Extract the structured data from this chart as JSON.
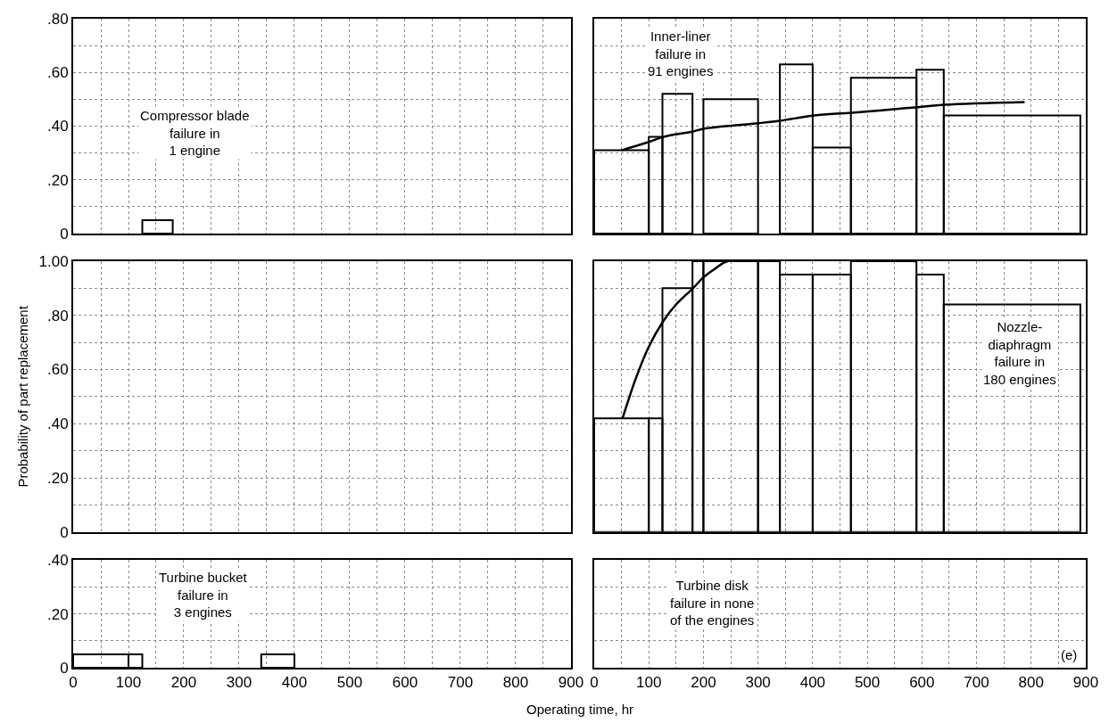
{
  "chart_data": [
    {
      "type": "histogram",
      "color": "#000000",
      "bins": [
        125,
        180
      ],
      "values": [
        0.05
      ],
      "annotations": [
        "Compressor blade\nfailure in\n1 engine"
      ],
      "xlim": [
        0,
        900
      ],
      "xticks": [
        0,
        50,
        100,
        150,
        200,
        250,
        300,
        350,
        400,
        450,
        500,
        550,
        600,
        650,
        700,
        750,
        800,
        850,
        900
      ],
      "ylim": [
        0,
        0.8
      ],
      "yticks": [
        0,
        {
          "value": 0.1,
          "label": null
        },
        {
          "value": 0.2,
          "label": ".20"
        },
        {
          "value": 0.3,
          "label": null
        },
        {
          "value": 0.4,
          "label": ".40"
        },
        {
          "value": 0.5,
          "label": null
        },
        {
          "value": 0.6,
          "label": ".60"
        },
        {
          "value": 0.7,
          "label": null
        },
        {
          "value": 0.8,
          "label": ".80"
        }
      ],
      "grid": true,
      "tick_labels": "y"
    },
    {
      "type": "histogram",
      "color": "#000000",
      "bins": [
        0,
        100,
        125,
        180,
        200,
        300,
        340,
        400,
        470,
        590,
        640,
        890
      ],
      "values": [
        0.31,
        0.36,
        0.52,
        null,
        0.5,
        null,
        0.63,
        0.32,
        0.58,
        0.61,
        0.44
      ],
      "series": [
        {
          "type": "line",
          "color": "#000000",
          "x": [
            50,
            99,
            127,
            181,
            200,
            296,
            340,
            403,
            472,
            587,
            641,
            788
          ],
          "values": [
            0.31,
            0.34,
            0.36,
            0.38,
            0.39,
            0.41,
            0.42,
            0.44,
            0.45,
            0.47,
            0.48,
            0.49
          ]
        }
      ],
      "annotations": [
        "Inner-liner\nfailure in\n91 engines"
      ],
      "xlim": [
        0,
        900
      ],
      "xticks": [
        0,
        50,
        100,
        150,
        200,
        250,
        300,
        350,
        400,
        450,
        500,
        550,
        600,
        650,
        700,
        750,
        800,
        850,
        900
      ],
      "ylim": [
        0,
        0.8
      ],
      "yticks": [
        0,
        0.1,
        0.2,
        0.3,
        0.4,
        0.5,
        0.6,
        0.7,
        0.8
      ],
      "grid": true,
      "tick_labels": false
    },
    {
      "type": "histogram",
      "color": "#000000",
      "ylabel": "Probability of part replacement",
      "xlim": [
        0,
        900
      ],
      "xticks": [
        0,
        50,
        100,
        150,
        200,
        250,
        300,
        350,
        400,
        450,
        500,
        550,
        600,
        650,
        700,
        750,
        800,
        850,
        900
      ],
      "ylim": [
        0,
        1.0
      ],
      "yticks": [
        0,
        {
          "value": 0.1,
          "label": null
        },
        {
          "value": 0.2,
          "label": ".20"
        },
        {
          "value": 0.3,
          "label": null
        },
        {
          "value": 0.4,
          "label": ".40"
        },
        {
          "value": 0.5,
          "label": null
        },
        {
          "value": 0.6,
          "label": ".60"
        },
        {
          "value": 0.7,
          "label": null
        },
        {
          "value": 0.8,
          "label": ".80"
        },
        {
          "value": 0.9,
          "label": null
        },
        {
          "value": 1.0,
          "label": "1.00"
        }
      ],
      "grid": true,
      "tick_labels": "y"
    },
    {
      "type": "histogram",
      "color": "#000000",
      "bins": [
        0,
        100,
        125,
        180,
        200,
        300,
        340,
        400,
        470,
        590,
        640,
        890
      ],
      "values": [
        0.42,
        0.42,
        0.9,
        1.0,
        1.0,
        1.0,
        0.95,
        0.95,
        1.0,
        0.95,
        0.84
      ],
      "series": [
        {
          "type": "line",
          "color": "#000000",
          "x": [
            52,
            75,
            99,
            127,
            150,
            181,
            200,
            220,
            245,
            590
          ],
          "values": [
            0.42,
            0.56,
            0.68,
            0.78,
            0.84,
            0.9,
            0.94,
            0.97,
            1.0,
            1.0
          ]
        }
      ],
      "annotations": [
        "Nozzle-\ndiaphragm\nfailure in\n180 engines"
      ],
      "xlim": [
        0,
        900
      ],
      "xticks": [
        0,
        50,
        100,
        150,
        200,
        250,
        300,
        350,
        400,
        450,
        500,
        550,
        600,
        650,
        700,
        750,
        800,
        850,
        900
      ],
      "ylim": [
        0,
        1.0
      ],
      "yticks": [
        0,
        0.1,
        0.2,
        0.3,
        0.4,
        0.5,
        0.6,
        0.7,
        0.8,
        0.9,
        1.0
      ],
      "grid": true,
      "tick_labels": false
    },
    {
      "type": "histogram",
      "color": "#000000",
      "bins": [
        0,
        100,
        125,
        340,
        400
      ],
      "values": [
        0.05,
        0.05,
        null,
        0.05
      ],
      "annotations": [
        "Turbine bucket\nfailure in\n3 engines"
      ],
      "xlabel": "Operating time, hr",
      "xlim": [
        0,
        900
      ],
      "xticks": [
        0,
        {
          "value": 50,
          "label": null
        },
        100,
        {
          "value": 150,
          "label": null
        },
        200,
        {
          "value": 250,
          "label": null
        },
        300,
        {
          "value": 350,
          "label": null
        },
        400,
        {
          "value": 450,
          "label": null
        },
        500,
        {
          "value": 550,
          "label": null
        },
        600,
        {
          "value": 650,
          "label": null
        },
        700,
        {
          "value": 750,
          "label": null
        },
        800,
        {
          "value": 850,
          "label": null
        },
        900
      ],
      "ylim": [
        0,
        0.4
      ],
      "yticks": [
        0,
        {
          "value": 0.1,
          "label": null
        },
        {
          "value": 0.2,
          "label": ".20"
        },
        {
          "value": 0.3,
          "label": null
        },
        {
          "value": 0.4,
          "label": ".40"
        }
      ],
      "grid": true
    },
    {
      "type": "histogram",
      "color": "#000000",
      "annotations": [
        "Turbine disk\nfailure in none\nof the engines",
        "(e)"
      ],
      "xlim": [
        0,
        900
      ],
      "xticks": [
        0,
        {
          "value": 50,
          "label": null
        },
        100,
        {
          "value": 150,
          "label": null
        },
        200,
        {
          "value": 250,
          "label": null
        },
        300,
        {
          "value": 350,
          "label": null
        },
        400,
        {
          "value": 450,
          "label": null
        },
        500,
        {
          "value": 550,
          "label": null
        },
        600,
        {
          "value": 650,
          "label": null
        },
        700,
        {
          "value": 750,
          "label": null
        },
        800,
        {
          "value": 850,
          "label": null
        },
        900
      ],
      "ylim": [
        0,
        0.4
      ],
      "yticks": [
        0,
        0.1,
        0.2,
        0.3,
        0.4
      ],
      "grid": true,
      "tick_labels": "x"
    }
  ]
}
